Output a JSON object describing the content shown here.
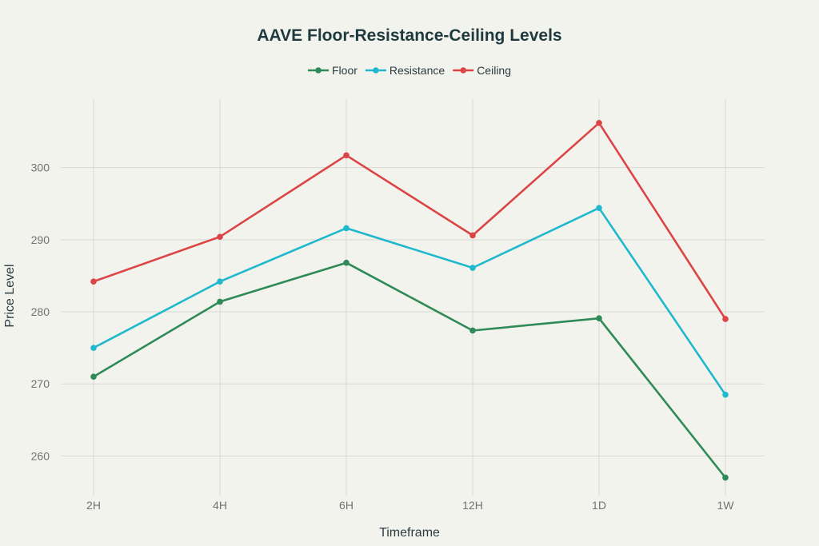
{
  "chart_data": {
    "type": "line",
    "title": "AAVE Floor-Resistance-Ceiling Levels",
    "xlabel": "Timeframe",
    "ylabel": "Price Level",
    "categories": [
      "2H",
      "4H",
      "6H",
      "12H",
      "1D",
      "1W"
    ],
    "ylim": [
      254.5,
      309.5
    ],
    "yticks": [
      260,
      270,
      280,
      290,
      300
    ],
    "grid": true,
    "legend_position": "top-center",
    "series": [
      {
        "name": "Floor",
        "color": "#2e8b57",
        "values": [
          271.0,
          281.4,
          286.8,
          277.4,
          279.1,
          257.0
        ]
      },
      {
        "name": "Resistance",
        "color": "#1fb8cd",
        "values": [
          275.0,
          284.2,
          291.6,
          286.1,
          294.4,
          268.5
        ]
      },
      {
        "name": "Ceiling",
        "color": "#db4545",
        "values": [
          284.2,
          290.4,
          301.7,
          290.6,
          306.2,
          279.0
        ]
      }
    ]
  }
}
